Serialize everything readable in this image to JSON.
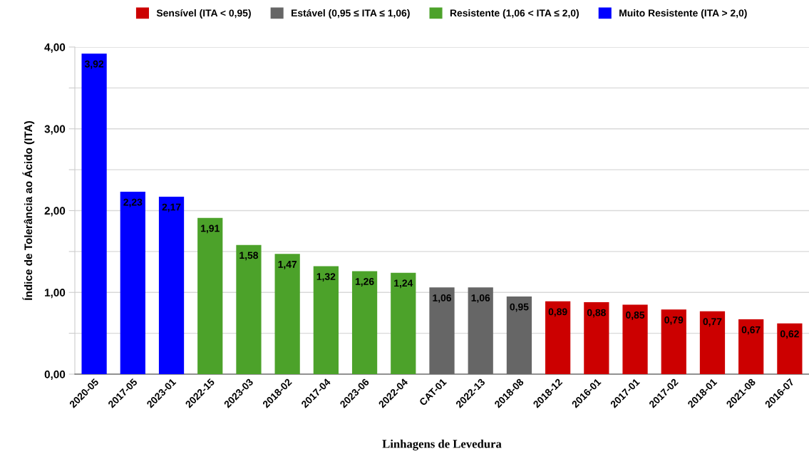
{
  "chart_data": {
    "type": "bar",
    "xlabel": "Linhagens de Levedura",
    "ylabel": "Índice de Tolerância ao Ácido (ITA)",
    "categories": [
      "2020-05",
      "2017-05",
      "2023-01",
      "2022-15",
      "2023-03",
      "2018-02",
      "2017-04",
      "2023-06",
      "2022-04",
      "CAT-01",
      "2022-13",
      "2018-08",
      "2018-12",
      "2016-01",
      "2017-01",
      "2017-02",
      "2018-01",
      "2021-08",
      "2016-07"
    ],
    "series": [
      {
        "name": "Sensível (ITA < 0,95)",
        "color": "#cc0000",
        "values": [
          null,
          null,
          null,
          null,
          null,
          null,
          null,
          null,
          null,
          null,
          null,
          null,
          0.89,
          0.88,
          0.85,
          0.79,
          0.77,
          0.67,
          0.62
        ],
        "value_labels": [
          null,
          null,
          null,
          null,
          null,
          null,
          null,
          null,
          null,
          null,
          null,
          null,
          "0,89",
          "0,88",
          "0,85",
          "0,79",
          "0,77",
          "0,67",
          "0,62"
        ]
      },
      {
        "name": "Estável (0,95 ≤ ITA ≤ 1,06)",
        "color": "#666666",
        "values": [
          null,
          null,
          null,
          null,
          null,
          null,
          null,
          null,
          null,
          1.06,
          1.06,
          0.95,
          null,
          null,
          null,
          null,
          null,
          null,
          null
        ],
        "value_labels": [
          null,
          null,
          null,
          null,
          null,
          null,
          null,
          null,
          null,
          "1,06",
          "1,06",
          "0,95",
          null,
          null,
          null,
          null,
          null,
          null,
          null
        ]
      },
      {
        "name": "Resistente (1,06 < ITA ≤ 2,0)",
        "color": "#4ca22a",
        "values": [
          null,
          null,
          null,
          1.91,
          1.58,
          1.47,
          1.32,
          1.26,
          1.24,
          null,
          null,
          null,
          null,
          null,
          null,
          null,
          null,
          null,
          null
        ],
        "value_labels": [
          null,
          null,
          null,
          "1,91",
          "1,58",
          "1,47",
          "1,32",
          "1,26",
          "1,24",
          null,
          null,
          null,
          null,
          null,
          null,
          null,
          null,
          null,
          null
        ]
      },
      {
        "name": "Muito Resistente (ITA > 2,0)",
        "color": "#0000ff",
        "values": [
          3.92,
          2.23,
          2.17,
          null,
          null,
          null,
          null,
          null,
          null,
          null,
          null,
          null,
          null,
          null,
          null,
          null,
          null,
          null,
          null
        ],
        "value_labels": [
          "3,92",
          "2,23",
          "2,17",
          null,
          null,
          null,
          null,
          null,
          null,
          null,
          null,
          null,
          null,
          null,
          null,
          null,
          null,
          null,
          null
        ]
      }
    ],
    "ylim": [
      0,
      4
    ],
    "yticks": [
      {
        "value": 0,
        "label": "0,00"
      },
      {
        "value": 0.5,
        "label": null
      },
      {
        "value": 1,
        "label": "1,00"
      },
      {
        "value": 1.5,
        "label": null
      },
      {
        "value": 2,
        "label": "2,00"
      },
      {
        "value": 2.5,
        "label": null
      },
      {
        "value": 3,
        "label": "3,00"
      },
      {
        "value": 3.5,
        "label": null
      },
      {
        "value": 4,
        "label": "4,00"
      }
    ],
    "grid": "y",
    "legend": "top"
  }
}
